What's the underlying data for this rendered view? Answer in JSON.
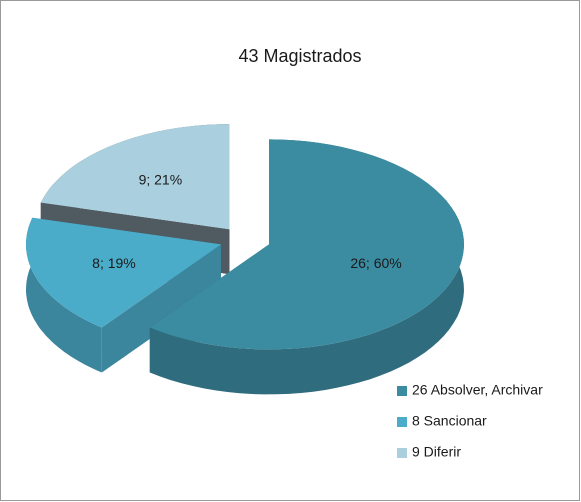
{
  "chart_data": {
    "type": "pie",
    "title": "43 Magistrados",
    "categories": [
      "26 Absolver, Archivar",
      "8 Sancionar",
      "9 Diferir"
    ],
    "values": [
      26,
      8,
      9
    ],
    "value_labels": [
      "26; 60%",
      "8; 19%",
      "9; 21%"
    ],
    "colors": [
      "#3b8ba1",
      "#4bacc9",
      "#aad0e0"
    ],
    "legend": "right"
  }
}
